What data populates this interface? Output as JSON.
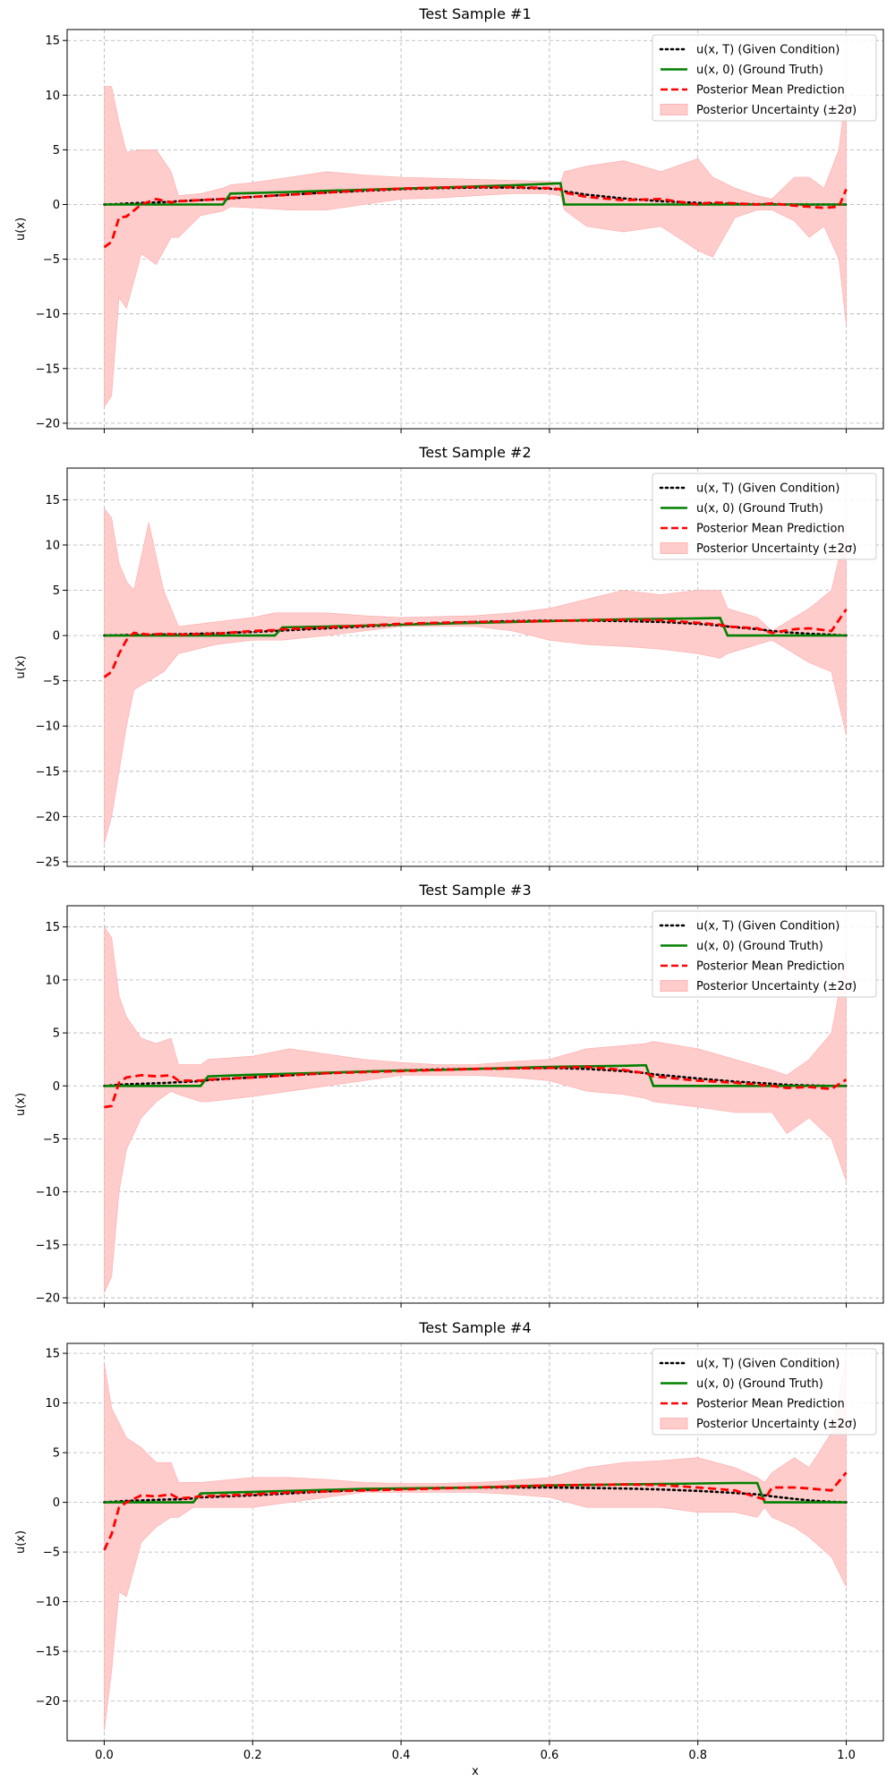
{
  "figure": {
    "xlabel": "x"
  },
  "legend": {
    "placement": "top-right",
    "items": [
      {
        "key": "given",
        "label": "u(x, T) (Given Condition)",
        "style": "dotted",
        "color": "#000000"
      },
      {
        "key": "truth",
        "label": "u(x, 0) (Ground Truth)",
        "style": "solid",
        "color": "#008000"
      },
      {
        "key": "mean",
        "label": "Posterior Mean Prediction",
        "style": "dashed",
        "color": "#ff0000"
      },
      {
        "key": "band",
        "label": "Posterior Uncertainty (±2σ)",
        "style": "fill",
        "color": "#ffcccc"
      }
    ]
  },
  "colors": {
    "band": "#ffcccc",
    "band_edge": "#ffaaaa",
    "grid": "#b0b0b0"
  },
  "chart_data": [
    {
      "type": "line",
      "title": "Test Sample #1",
      "xlabel": "",
      "ylabel": "u(x)",
      "grid": true,
      "xlim": [
        -0.05,
        1.05
      ],
      "ylim": [
        -20.5,
        16
      ],
      "xticks": [
        0.0,
        0.2,
        0.4,
        0.6,
        0.8,
        1.0
      ],
      "xticklabels": [
        "",
        "",
        "",
        "",
        "",
        ""
      ],
      "yticks": [
        -20,
        -15,
        -10,
        -5,
        0,
        5,
        10,
        15
      ],
      "x": [
        0.0,
        0.01,
        0.02,
        0.03,
        0.05,
        0.07,
        0.09,
        0.1,
        0.13,
        0.16,
        0.17,
        0.2,
        0.25,
        0.3,
        0.35,
        0.4,
        0.45,
        0.5,
        0.55,
        0.6,
        0.615,
        0.62,
        0.65,
        0.7,
        0.75,
        0.8,
        0.82,
        0.85,
        0.88,
        0.9,
        0.93,
        0.95,
        0.97,
        0.99,
        1.0
      ],
      "series": [
        {
          "key": "truth",
          "values": [
            0,
            0,
            0,
            0,
            0,
            0,
            0,
            0,
            0,
            0,
            1.0,
            1.05,
            1.15,
            1.25,
            1.35,
            1.45,
            1.55,
            1.65,
            1.75,
            1.9,
            1.95,
            0,
            0,
            0,
            0,
            0,
            0,
            0,
            0,
            0,
            0,
            0,
            0,
            0,
            0
          ]
        },
        {
          "key": "given",
          "values": [
            0,
            0.02,
            0.05,
            0.1,
            0.15,
            0.2,
            0.25,
            0.3,
            0.4,
            0.5,
            0.55,
            0.7,
            0.9,
            1.1,
            1.25,
            1.4,
            1.5,
            1.55,
            1.55,
            1.45,
            1.35,
            1.2,
            0.9,
            0.55,
            0.3,
            0.15,
            0.1,
            0.05,
            0.03,
            0.02,
            0.01,
            0.0,
            0.0,
            0.0,
            0.0
          ]
        },
        {
          "key": "mean",
          "values": [
            -3.9,
            -3.4,
            -1.2,
            -1.1,
            0.0,
            0.5,
            0.2,
            0.3,
            0.4,
            0.5,
            0.6,
            0.7,
            0.9,
            1.1,
            1.3,
            1.45,
            1.55,
            1.6,
            1.6,
            1.5,
            1.4,
            1.1,
            0.7,
            0.4,
            0.5,
            0.0,
            0.2,
            0.1,
            0.0,
            0.1,
            -0.1,
            -0.2,
            -0.3,
            -0.2,
            1.4
          ]
        },
        {
          "key": "band_upper",
          "values": [
            10.8,
            10.8,
            7.5,
            4.8,
            5.0,
            5.0,
            3.0,
            0.8,
            1.0,
            1.5,
            1.8,
            2.0,
            2.5,
            3.0,
            2.7,
            2.5,
            2.4,
            2.3,
            2.2,
            2.1,
            2.0,
            3.0,
            3.5,
            4.0,
            3.0,
            4.2,
            2.5,
            1.5,
            0.8,
            0.5,
            2.5,
            2.5,
            1.5,
            5.0,
            10.5
          ]
        },
        {
          "key": "band_lower",
          "values": [
            -18.5,
            -17.5,
            -8.5,
            -9.5,
            -4.5,
            -5.5,
            -3.0,
            -3.0,
            -1.0,
            -0.6,
            -0.2,
            -0.3,
            -0.5,
            -0.5,
            0.0,
            0.5,
            0.6,
            0.8,
            1.0,
            1.0,
            0.8,
            -0.5,
            -2.0,
            -2.5,
            -2.0,
            -4.2,
            -4.8,
            -1.2,
            -0.5,
            -0.5,
            -1.5,
            -3.0,
            -2.0,
            -5.0,
            -11.0
          ]
        }
      ]
    },
    {
      "type": "line",
      "title": "Test Sample #2",
      "xlabel": "",
      "ylabel": "u(x)",
      "grid": true,
      "xlim": [
        -0.05,
        1.05
      ],
      "ylim": [
        -25.5,
        18.5
      ],
      "xticks": [
        0.0,
        0.2,
        0.4,
        0.6,
        0.8,
        1.0
      ],
      "xticklabels": [
        "",
        "",
        "",
        "",
        "",
        ""
      ],
      "yticks": [
        -25,
        -20,
        -15,
        -10,
        -5,
        0,
        5,
        10,
        15
      ],
      "x": [
        0.0,
        0.01,
        0.02,
        0.03,
        0.04,
        0.06,
        0.08,
        0.1,
        0.15,
        0.2,
        0.23,
        0.24,
        0.3,
        0.35,
        0.4,
        0.45,
        0.5,
        0.55,
        0.6,
        0.65,
        0.7,
        0.75,
        0.8,
        0.83,
        0.84,
        0.88,
        0.9,
        0.93,
        0.95,
        0.98,
        1.0
      ],
      "series": [
        {
          "key": "truth",
          "values": [
            0,
            0,
            0,
            0,
            0,
            0,
            0,
            0,
            0,
            0,
            0,
            0.9,
            1.0,
            1.1,
            1.2,
            1.3,
            1.4,
            1.5,
            1.6,
            1.7,
            1.8,
            1.85,
            1.9,
            1.95,
            0,
            0,
            0,
            0,
            0,
            0,
            0
          ]
        },
        {
          "key": "given",
          "values": [
            0,
            0.02,
            0.04,
            0.06,
            0.08,
            0.1,
            0.12,
            0.15,
            0.25,
            0.4,
            0.5,
            0.55,
            0.8,
            1.0,
            1.2,
            1.35,
            1.5,
            1.6,
            1.65,
            1.65,
            1.6,
            1.5,
            1.3,
            1.1,
            1.0,
            0.7,
            0.5,
            0.3,
            0.2,
            0.1,
            0.0
          ]
        },
        {
          "key": "mean",
          "values": [
            -4.6,
            -4.0,
            -2.0,
            -0.5,
            0.3,
            0.1,
            0.2,
            0.1,
            0.2,
            0.5,
            0.6,
            0.7,
            0.9,
            1.1,
            1.3,
            1.4,
            1.5,
            1.55,
            1.6,
            1.7,
            1.75,
            1.7,
            1.4,
            1.2,
            1.0,
            0.8,
            0.3,
            0.7,
            0.8,
            0.5,
            2.9
          ]
        },
        {
          "key": "band_upper",
          "values": [
            14.0,
            13.0,
            8.0,
            6.0,
            5.0,
            12.5,
            5.0,
            1.0,
            1.5,
            2.0,
            2.5,
            2.5,
            2.5,
            2.2,
            2.0,
            2.1,
            2.2,
            2.5,
            3.0,
            4.0,
            5.0,
            4.5,
            5.0,
            5.0,
            3.0,
            2.0,
            0.5,
            2.0,
            3.0,
            5.0,
            12.0
          ]
        },
        {
          "key": "band_lower",
          "values": [
            -23.0,
            -20.0,
            -15.0,
            -10.0,
            -6.0,
            -5.0,
            -4.0,
            -2.0,
            -1.0,
            -0.5,
            -0.5,
            -0.5,
            0.0,
            0.5,
            1.0,
            1.0,
            1.0,
            0.5,
            -0.5,
            -1.0,
            -1.2,
            -1.5,
            -2.0,
            -2.5,
            -2.0,
            -1.0,
            -0.5,
            -2.0,
            -3.0,
            -4.0,
            -11.0
          ]
        }
      ]
    },
    {
      "type": "line",
      "title": "Test Sample #3",
      "xlabel": "",
      "ylabel": "u(x)",
      "grid": true,
      "xlim": [
        -0.05,
        1.05
      ],
      "ylim": [
        -20.5,
        17
      ],
      "xticks": [
        0.0,
        0.2,
        0.4,
        0.6,
        0.8,
        1.0
      ],
      "xticklabels": [
        "",
        "",
        "",
        "",
        "",
        ""
      ],
      "yticks": [
        -20,
        -15,
        -10,
        -5,
        0,
        5,
        10,
        15
      ],
      "x": [
        0.0,
        0.01,
        0.02,
        0.03,
        0.05,
        0.07,
        0.09,
        0.1,
        0.13,
        0.14,
        0.2,
        0.25,
        0.3,
        0.35,
        0.4,
        0.45,
        0.5,
        0.55,
        0.6,
        0.65,
        0.7,
        0.73,
        0.74,
        0.8,
        0.85,
        0.9,
        0.92,
        0.95,
        0.98,
        1.0
      ],
      "series": [
        {
          "key": "truth",
          "values": [
            0,
            0,
            0,
            0,
            0,
            0,
            0,
            0,
            0,
            0.9,
            1.05,
            1.15,
            1.25,
            1.35,
            1.45,
            1.5,
            1.6,
            1.7,
            1.8,
            1.85,
            1.9,
            1.95,
            0,
            0,
            0,
            0,
            0,
            0,
            0,
            0
          ]
        },
        {
          "key": "given",
          "values": [
            0,
            0.05,
            0.1,
            0.15,
            0.2,
            0.25,
            0.3,
            0.35,
            0.45,
            0.55,
            0.8,
            1.0,
            1.2,
            1.35,
            1.45,
            1.55,
            1.6,
            1.65,
            1.7,
            1.6,
            1.4,
            1.2,
            1.1,
            0.7,
            0.4,
            0.2,
            0.1,
            0.05,
            0.0,
            0.0
          ]
        },
        {
          "key": "mean",
          "values": [
            -2.0,
            -1.9,
            0.3,
            0.8,
            1.0,
            0.9,
            1.0,
            0.5,
            0.5,
            0.6,
            0.8,
            1.0,
            1.2,
            1.3,
            1.4,
            1.5,
            1.6,
            1.65,
            1.7,
            1.8,
            1.5,
            1.2,
            0.9,
            0.5,
            0.3,
            0.0,
            -0.2,
            -0.1,
            -0.3,
            0.6
          ]
        },
        {
          "key": "band_upper",
          "values": [
            15.0,
            14.0,
            8.5,
            6.5,
            4.5,
            4.0,
            4.5,
            2.0,
            2.0,
            2.5,
            2.8,
            3.5,
            3.0,
            2.5,
            2.2,
            2.0,
            2.0,
            2.3,
            2.5,
            3.5,
            3.8,
            4.0,
            4.2,
            3.5,
            2.5,
            1.5,
            1.0,
            2.5,
            5.0,
            12.5
          ]
        },
        {
          "key": "band_lower",
          "values": [
            -19.5,
            -18.0,
            -10.0,
            -6.0,
            -3.0,
            -1.5,
            -0.5,
            -0.8,
            -1.5,
            -1.5,
            -1.0,
            -0.5,
            0.0,
            0.5,
            1.0,
            1.0,
            1.0,
            0.8,
            0.5,
            -0.5,
            -0.8,
            -1.2,
            -1.5,
            -2.0,
            -2.5,
            -2.5,
            -4.5,
            -3.0,
            -5.0,
            -9.0
          ]
        }
      ]
    },
    {
      "type": "line",
      "title": "Test Sample #4",
      "xlabel": "x",
      "ylabel": "u(x)",
      "grid": true,
      "xlim": [
        -0.05,
        1.05
      ],
      "ylim": [
        -24,
        16
      ],
      "xticks": [
        0.0,
        0.2,
        0.4,
        0.6,
        0.8,
        1.0
      ],
      "xticklabels": [
        "0.0",
        "0.2",
        "0.4",
        "0.6",
        "0.8",
        "1.0"
      ],
      "yticks": [
        -20,
        -15,
        -10,
        -5,
        0,
        5,
        10,
        15
      ],
      "x": [
        0.0,
        0.01,
        0.02,
        0.03,
        0.05,
        0.07,
        0.09,
        0.1,
        0.12,
        0.13,
        0.2,
        0.25,
        0.3,
        0.35,
        0.4,
        0.45,
        0.5,
        0.55,
        0.6,
        0.65,
        0.7,
        0.75,
        0.8,
        0.85,
        0.88,
        0.89,
        0.9,
        0.93,
        0.95,
        0.98,
        1.0
      ],
      "series": [
        {
          "key": "truth",
          "values": [
            0,
            0,
            0,
            0,
            0,
            0,
            0,
            0,
            0,
            0.9,
            1.05,
            1.15,
            1.25,
            1.35,
            1.4,
            1.45,
            1.5,
            1.6,
            1.7,
            1.75,
            1.8,
            1.85,
            1.9,
            1.95,
            1.95,
            0,
            0,
            0,
            0,
            0,
            0
          ]
        },
        {
          "key": "given",
          "values": [
            0,
            0.05,
            0.1,
            0.15,
            0.2,
            0.25,
            0.3,
            0.3,
            0.4,
            0.5,
            0.7,
            0.9,
            1.1,
            1.25,
            1.35,
            1.45,
            1.5,
            1.5,
            1.5,
            1.45,
            1.4,
            1.3,
            1.15,
            0.95,
            0.8,
            0.7,
            0.6,
            0.35,
            0.2,
            0.05,
            0.0
          ]
        },
        {
          "key": "mean",
          "values": [
            -4.8,
            -3.2,
            -0.5,
            0.0,
            0.7,
            0.6,
            0.8,
            0.4,
            0.5,
            0.6,
            0.8,
            1.0,
            1.1,
            1.2,
            1.3,
            1.4,
            1.5,
            1.6,
            1.7,
            1.75,
            1.8,
            1.75,
            1.5,
            1.2,
            0.5,
            0.3,
            1.5,
            1.5,
            1.4,
            1.2,
            3.0
          ]
        },
        {
          "key": "band_upper",
          "values": [
            14.0,
            9.5,
            8.0,
            6.5,
            5.5,
            4.0,
            4.0,
            2.0,
            2.0,
            2.0,
            2.5,
            2.5,
            2.3,
            2.0,
            1.9,
            1.9,
            2.0,
            2.2,
            2.5,
            3.5,
            4.0,
            4.2,
            4.5,
            3.5,
            2.5,
            2.0,
            3.0,
            4.5,
            3.5,
            7.0,
            14.5
          ]
        },
        {
          "key": "band_lower",
          "values": [
            -23.0,
            -17.0,
            -9.0,
            -9.5,
            -4.0,
            -2.5,
            -1.5,
            -1.5,
            -0.5,
            -0.5,
            -0.5,
            0.0,
            0.5,
            1.0,
            1.0,
            1.0,
            1.0,
            0.8,
            0.5,
            -0.5,
            -0.5,
            -0.5,
            -1.0,
            -1.0,
            -1.5,
            -0.5,
            -1.5,
            -2.5,
            -3.5,
            -5.5,
            -8.5
          ]
        }
      ]
    }
  ]
}
